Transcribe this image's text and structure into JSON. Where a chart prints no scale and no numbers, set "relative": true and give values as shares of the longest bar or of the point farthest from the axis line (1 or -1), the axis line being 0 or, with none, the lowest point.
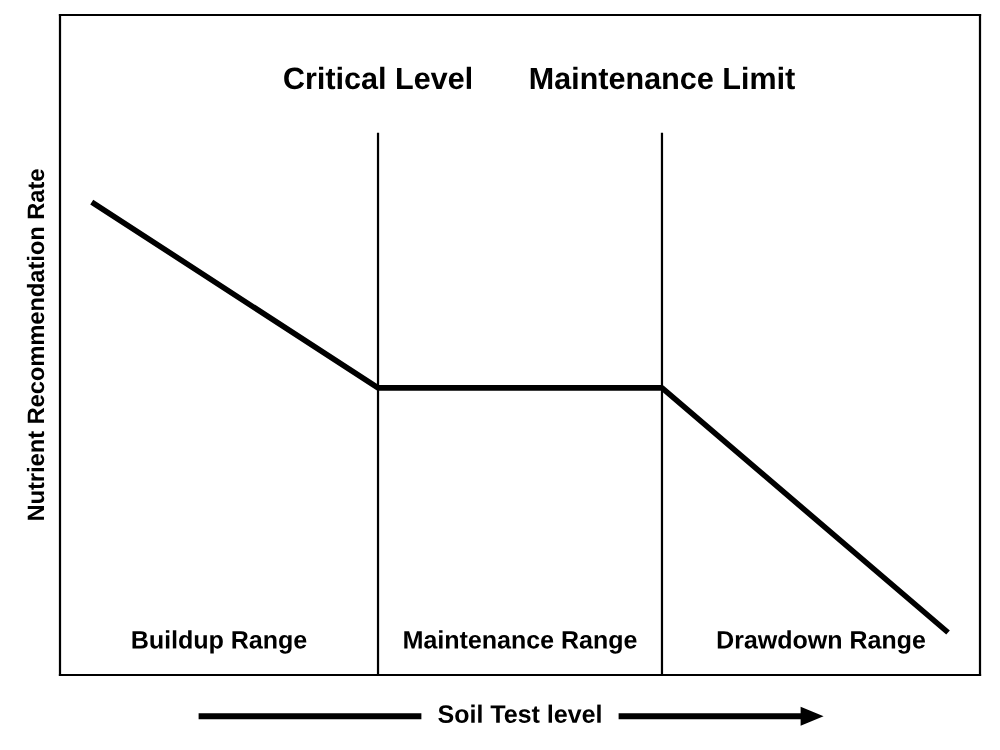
{
  "chart_data": {
    "type": "line",
    "relative": true,
    "ylabel": "Nutrient Recommendation Rate",
    "xlabel": "Soil Test level",
    "categories": [
      null,
      null,
      null,
      null
    ],
    "series": [
      {
        "color": "#000000",
        "values": [
          1,
          0.609,
          0.609,
          0.094
        ]
      }
    ],
    "annotations": [
      "Critical Level",
      "Maintenance Limit",
      "Buildup Range",
      "Maintenance Range",
      "Drawdown Range"
    ],
    "legend": false,
    "marker": "none",
    "line_style": "solid"
  }
}
